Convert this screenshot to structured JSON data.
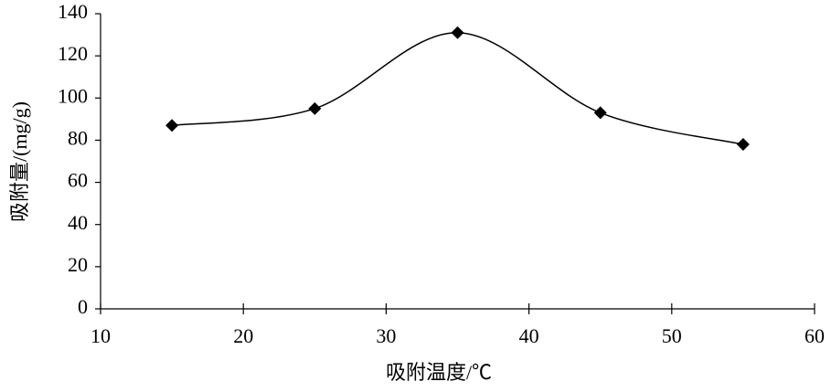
{
  "chart_data": {
    "type": "line",
    "x_label": "吸附温度/℃",
    "y_label": "吸附量/(mg/g)",
    "x": [
      15,
      25,
      35,
      45,
      55
    ],
    "values": [
      87,
      95,
      131,
      93,
      78
    ],
    "color": "#000000",
    "smooth": true,
    "marker": "diamond",
    "xlim": [
      10,
      60
    ],
    "xticks": [
      10,
      20,
      30,
      40,
      50,
      60
    ],
    "ylim": [
      0,
      140
    ],
    "yticks": [
      0,
      20,
      40,
      60,
      80,
      100,
      120,
      140
    ]
  }
}
